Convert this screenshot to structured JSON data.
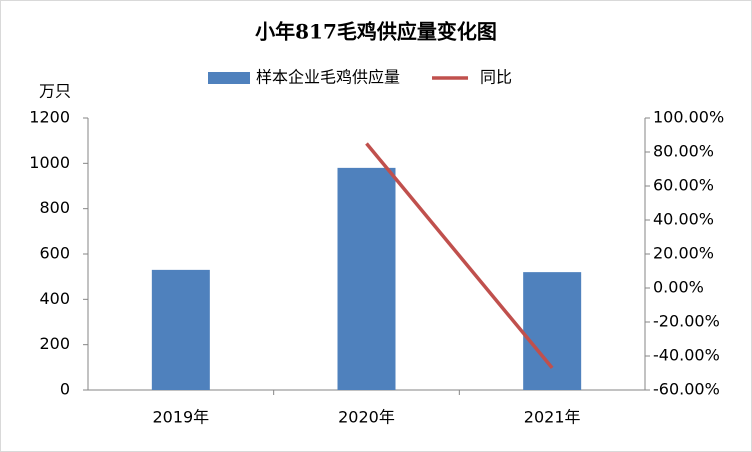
{
  "chart_data": {
    "type": "bar",
    "title": "小年817毛鸡供应量变化图",
    "y_label": "万只",
    "categories": [
      "2019年",
      "2020年",
      "2021年"
    ],
    "series": [
      {
        "name": "样本企业毛鸡供应量",
        "type": "bar",
        "color": "#4f81bd",
        "values": [
          530,
          980,
          520
        ]
      },
      {
        "name": "同比",
        "type": "line",
        "axis": "y2",
        "color": "#c0504d",
        "values": [
          null,
          85,
          -47
        ]
      }
    ],
    "ylim": [
      0,
      1200
    ],
    "yticks": [
      0,
      200,
      400,
      600,
      800,
      1000,
      1200
    ],
    "y2lim": [
      -60,
      100
    ],
    "y2ticks": [
      {
        "value": -60,
        "label": "-60.00%"
      },
      {
        "value": -40,
        "label": "-40.00%"
      },
      {
        "value": -20,
        "label": "-20.00%"
      },
      {
        "value": 0,
        "label": "0.00%"
      },
      {
        "value": 20,
        "label": "20.00%"
      },
      {
        "value": 40,
        "label": "40.00%"
      },
      {
        "value": 60,
        "label": "60.00%"
      },
      {
        "value": 80,
        "label": "80.00%"
      },
      {
        "value": 100,
        "label": "100.00%"
      }
    ],
    "legend": "top"
  }
}
